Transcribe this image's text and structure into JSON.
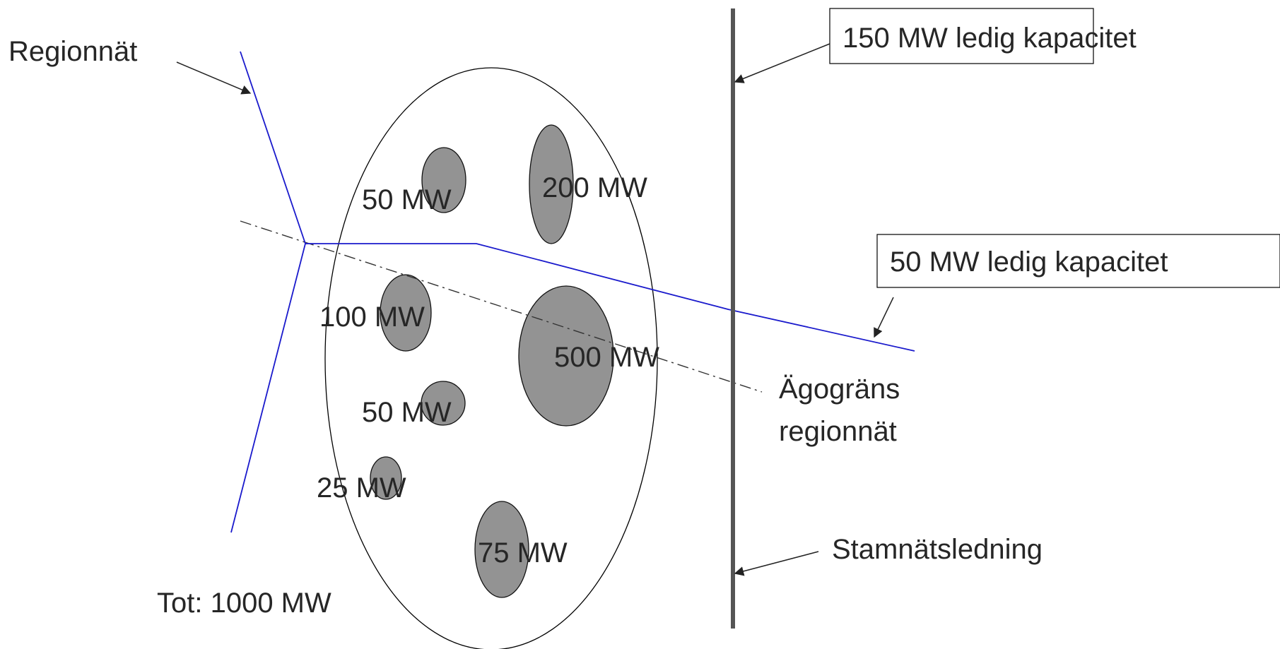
{
  "colors": {
    "regionnat_line": "#1a1acc",
    "stamnat_line": "#555555",
    "plant_fill": "#939393",
    "text": "#262626"
  },
  "labels": {
    "regionnat": "Regionnät",
    "capacity_150": "150 MW ledig kapacitet",
    "capacity_50": "50 MW ledig kapacitet",
    "agogrants_line1": "Ägogräns",
    "agogrants_line2": "regionnät",
    "stamnatsledning": "Stamnätsledning",
    "total": "Tot: 1000 MW"
  },
  "plants": [
    {
      "id": "plant-50-top",
      "label": "50 MW"
    },
    {
      "id": "plant-200",
      "label": "200 MW"
    },
    {
      "id": "plant-100",
      "label": "100 MW"
    },
    {
      "id": "plant-500",
      "label": "500 MW"
    },
    {
      "id": "plant-50-mid",
      "label": "50 MW"
    },
    {
      "id": "plant-25",
      "label": "25 MW"
    },
    {
      "id": "plant-75",
      "label": "75 MW"
    }
  ]
}
